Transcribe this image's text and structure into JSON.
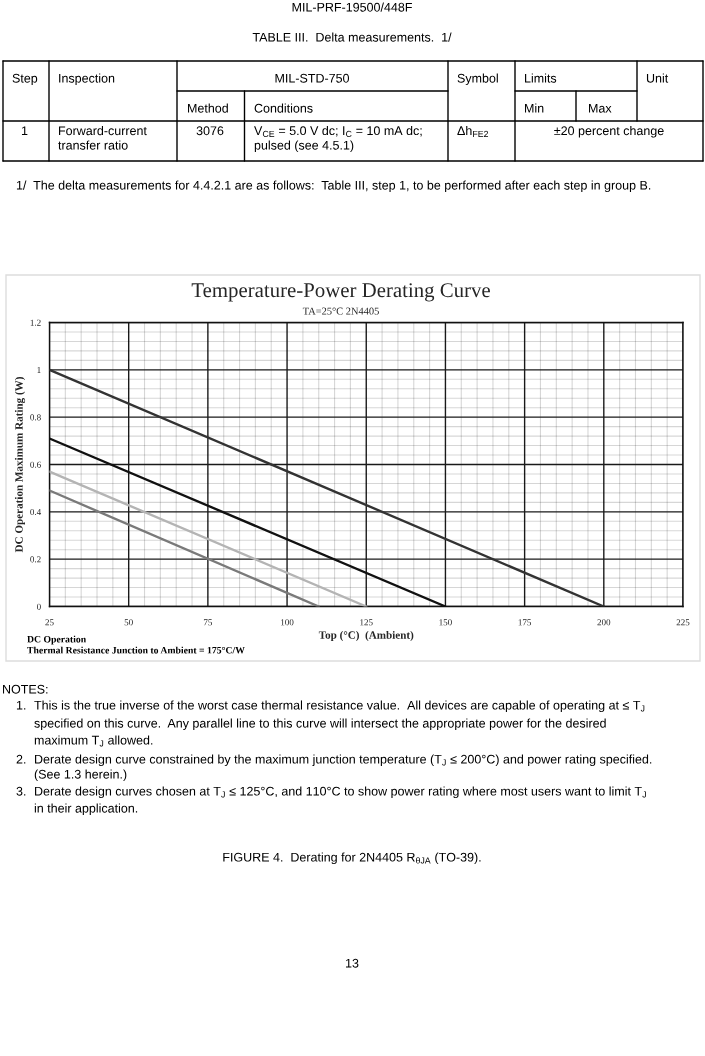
{
  "chart_data": {
    "type": "line",
    "title": "Temperature-Power Derating Curve",
    "subtitle": "TA=25°C 2N4405",
    "xlabel": "Top (°C)  (Ambient)",
    "ylabel": "DC Operation Maximum Rating (W)",
    "series": [
      {
        "x": [
          25,
          200
        ],
        "values": [
          1,
          0
        ],
        "color": "#333333"
      },
      {
        "x": [
          25,
          150
        ],
        "values": [
          0.71,
          0
        ],
        "color": "#111111"
      },
      {
        "x": [
          25,
          125
        ],
        "values": [
          0.57,
          0
        ],
        "color": "#b4b4b4"
      },
      {
        "x": [
          25,
          110
        ],
        "values": [
          0.49,
          0
        ],
        "color": "#7a7a7a"
      }
    ],
    "xlim": [
      25,
      225
    ],
    "ylim": [
      0,
      1.2
    ],
    "xticks": [
      25,
      {
        "value": 30,
        "label": null
      },
      {
        "value": 35,
        "label": null
      },
      {
        "value": 40,
        "label": null
      },
      {
        "value": 45,
        "label": null
      },
      50,
      {
        "value": 55,
        "label": null
      },
      {
        "value": 60,
        "label": null
      },
      {
        "value": 65,
        "label": null
      },
      {
        "value": 70,
        "label": null
      },
      75,
      {
        "value": 80,
        "label": null
      },
      {
        "value": 85,
        "label": null
      },
      {
        "value": 90,
        "label": null
      },
      {
        "value": 95,
        "label": null
      },
      100,
      {
        "value": 105,
        "label": null
      },
      {
        "value": 110,
        "label": null
      },
      {
        "value": 115,
        "label": null
      },
      {
        "value": 120,
        "label": null
      },
      125,
      {
        "value": 130,
        "label": null
      },
      {
        "value": 135,
        "label": null
      },
      {
        "value": 140,
        "label": null
      },
      {
        "value": 145,
        "label": null
      },
      150,
      {
        "value": 155,
        "label": null
      },
      {
        "value": 160,
        "label": null
      },
      {
        "value": 165,
        "label": null
      },
      {
        "value": 170,
        "label": null
      },
      175,
      {
        "value": 180,
        "label": null
      },
      {
        "value": 185,
        "label": null
      },
      {
        "value": 190,
        "label": null
      },
      {
        "value": 195,
        "label": null
      },
      200,
      {
        "value": 205,
        "label": null
      },
      {
        "value": 210,
        "label": null
      },
      {
        "value": 215,
        "label": null
      },
      {
        "value": 220,
        "label": null
      },
      225
    ],
    "yticks": [
      0,
      {
        "value": 0.04,
        "label": null
      },
      {
        "value": 0.08,
        "label": null
      },
      {
        "value": 0.12,
        "label": null
      },
      {
        "value": 0.16,
        "label": null
      },
      0.2,
      {
        "value": 0.24,
        "label": null
      },
      {
        "value": 0.28,
        "label": null
      },
      {
        "value": 0.32,
        "label": null
      },
      {
        "value": 0.36,
        "label": null
      },
      0.4,
      {
        "value": 0.44,
        "label": null
      },
      {
        "value": 0.48,
        "label": null
      },
      {
        "value": 0.52,
        "label": null
      },
      {
        "value": 0.56,
        "label": null
      },
      0.6,
      {
        "value": 0.64,
        "label": null
      },
      {
        "value": 0.68,
        "label": null
      },
      {
        "value": 0.72,
        "label": null
      },
      {
        "value": 0.76,
        "label": null
      },
      0.8,
      {
        "value": 0.84,
        "label": null
      },
      {
        "value": 0.88,
        "label": null
      },
      {
        "value": 0.92,
        "label": null
      },
      {
        "value": 0.96,
        "label": null
      },
      1,
      {
        "value": 1.04,
        "label": null
      },
      {
        "value": 1.08,
        "label": null
      },
      {
        "value": 1.12,
        "label": null
      },
      {
        "value": 1.16,
        "label": null
      },
      1.2
    ],
    "grid": true,
    "line_style": "solid",
    "annotations": [
      "MIL-PRF-19500/448F",
      "TABLE III.  Delta measurements.  1/",
      "Step",
      "Inspection",
      "MIL-STD-750",
      "Symbol",
      "Limits",
      "Unit",
      "Method",
      "Conditions",
      "Min",
      "Max",
      "1",
      "Forward-current",
      "transfer ratio",
      "3076",
      "V$_{CE}$ = 5.0 V dc; I$_{C}$ = 10 mA dc;",
      "pulsed (see 4.5.1)",
      "Δh$_{FE2}$",
      "±20 percent change",
      "1/  The delta measurements for 4.4.2.1 are as follows:  Table III, step 1, to be performed after each step in group B.",
      "DC Operation",
      "Thermal Resistance Junction to Ambient = 175°C/W",
      "NOTES:",
      "1.",
      "This is the true inverse of the worst case thermal resistance value.  All devices are capable of operating at ≤ T$_{J}$",
      "specified on this curve.  Any parallel line to this curve will intersect the appropriate power for the desired",
      "maximum T$_{J}$ allowed.",
      "2.",
      "Derate design curve constrained by the maximum junction temperature (T$_{J}$ ≤ 200°C) and power rating specified.",
      "(See 1.3 herein.)",
      "3.",
      "Derate design curves chosen at T$_{J}$ ≤ 125°C, and 110°C to show power rating where most users want to limit T$_{J}$",
      "in their application.",
      "FIGURE 4.  Derating for 2N4405 R$_{θJA}$ (TO-39).",
      "13"
    ]
  }
}
